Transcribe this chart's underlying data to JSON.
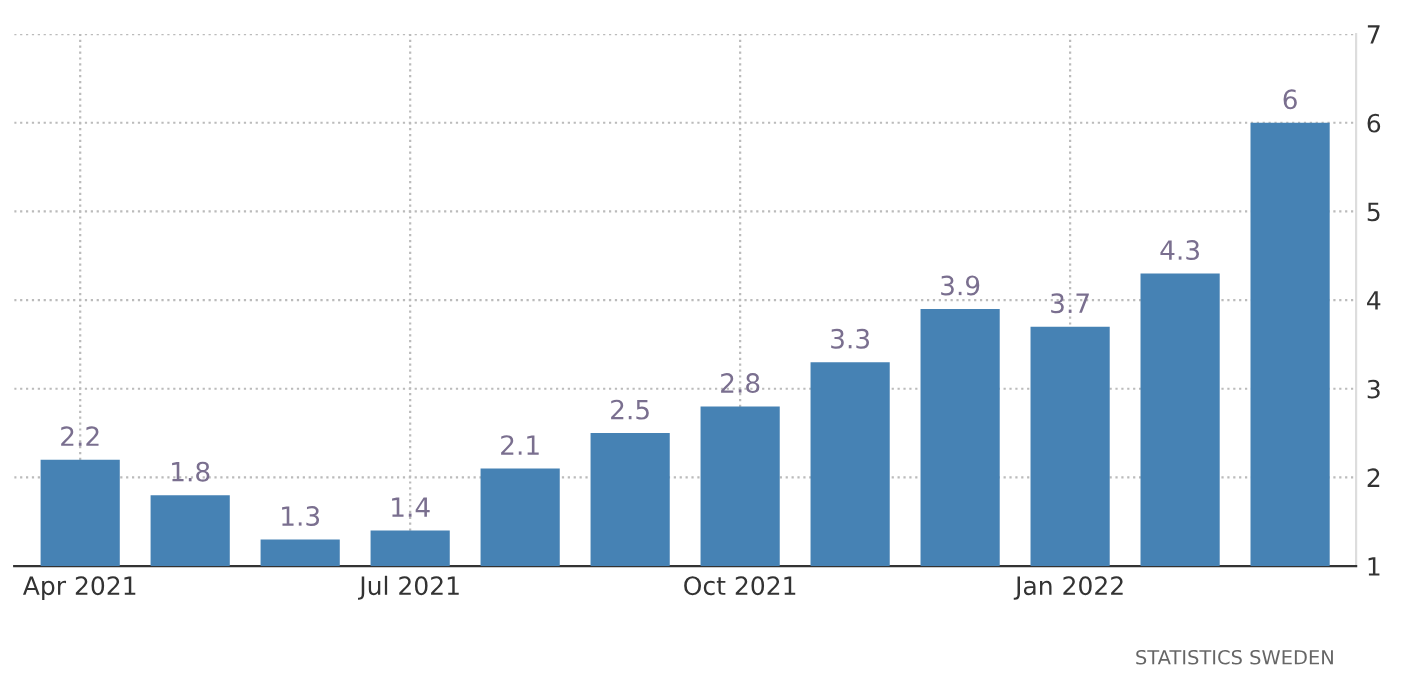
{
  "chart_data": {
    "type": "bar",
    "categories": [
      "Apr 2021",
      null,
      null,
      "Jul 2021",
      null,
      null,
      "Oct 2021",
      null,
      null,
      "Jan 2022",
      null,
      null
    ],
    "values": [
      2.2,
      1.8,
      1.3,
      1.4,
      2.1,
      2.5,
      2.8,
      3.3,
      3.9,
      3.7,
      4.3,
      6
    ],
    "color": "#4682b4",
    "ylim": [
      1,
      7
    ],
    "yticks": [
      1,
      2,
      3,
      4,
      5,
      6,
      7
    ],
    "grid": true,
    "data_labels": true,
    "annotations": [
      "STATISTICS SWEDEN"
    ]
  }
}
